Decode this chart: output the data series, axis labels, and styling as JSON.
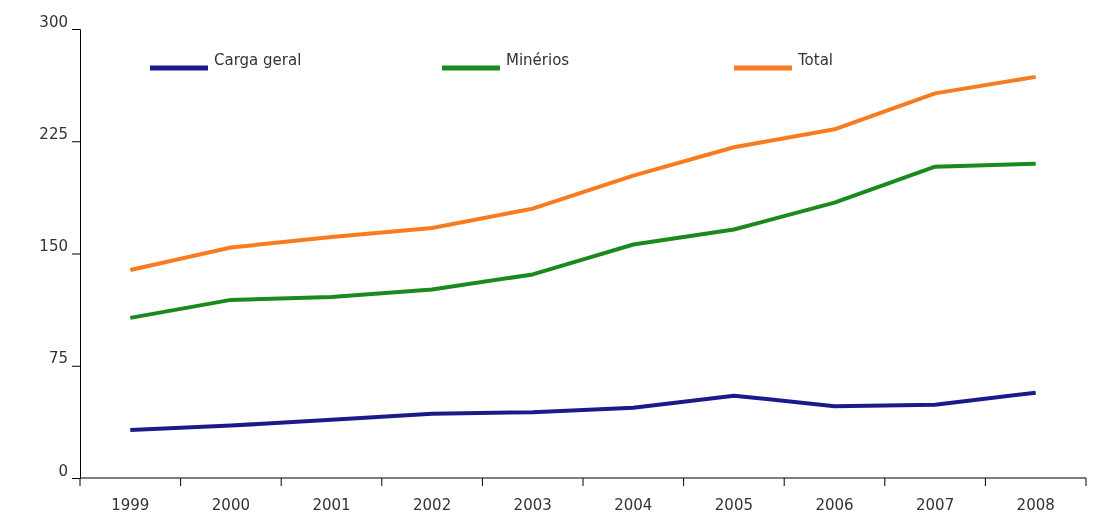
{
  "chart_data": {
    "type": "line",
    "categories": [
      "1999",
      "2000",
      "2001",
      "2002",
      "2003",
      "2004",
      "2005",
      "2006",
      "2007",
      "2008"
    ],
    "series": [
      {
        "name": "Carga geral",
        "color": "#1c1a8a",
        "values": [
          32,
          35,
          39,
          43,
          44,
          47,
          55,
          48,
          49,
          57
        ]
      },
      {
        "name": "Minérios",
        "color": "#1a8a1e",
        "values": [
          107,
          119,
          121,
          126,
          136,
          156,
          166,
          184,
          208,
          210
        ]
      },
      {
        "name": "Total",
        "color": "#f97b20",
        "values": [
          139,
          154,
          161,
          167,
          180,
          202,
          221,
          233,
          257,
          268
        ]
      }
    ],
    "ylim": [
      0,
      300
    ],
    "yticks": [
      0,
      75,
      150,
      225,
      300
    ],
    "grid": false,
    "legend": "top",
    "marker": "none",
    "line_style": "solid"
  }
}
